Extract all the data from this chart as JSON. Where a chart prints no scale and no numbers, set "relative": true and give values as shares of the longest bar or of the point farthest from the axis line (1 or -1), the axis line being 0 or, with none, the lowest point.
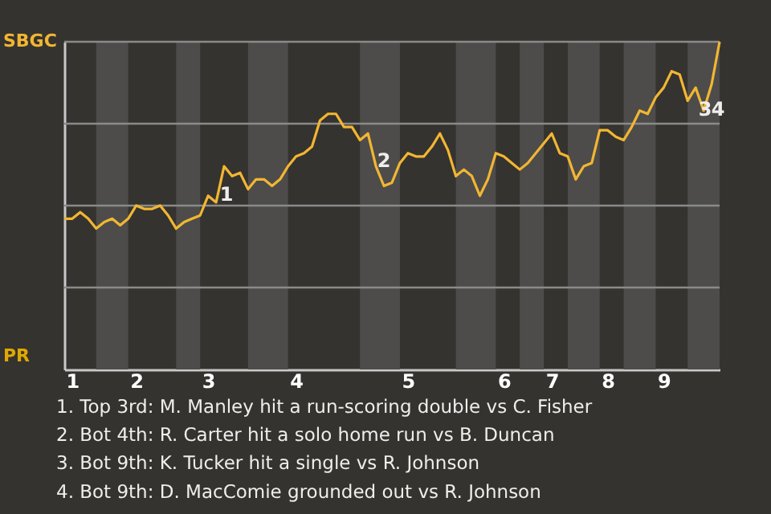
{
  "chart_data": {
    "type": "line",
    "relative": true,
    "categories": [
      null,
      "1",
      null,
      null,
      null,
      null,
      null,
      null,
      null,
      "2",
      null,
      null,
      null,
      null,
      null,
      null,
      null,
      null,
      "3",
      null,
      null,
      null,
      null,
      null,
      null,
      null,
      null,
      null,
      null,
      "4",
      null,
      null,
      null,
      null,
      null,
      null,
      null,
      null,
      null,
      null,
      null,
      null,
      null,
      "5",
      null,
      null,
      null,
      null,
      null,
      null,
      null,
      null,
      null,
      null,
      null,
      "6",
      null,
      null,
      null,
      null,
      null,
      "7",
      null,
      null,
      null,
      null,
      null,
      null,
      "8",
      null,
      null,
      null,
      null,
      null,
      null,
      "9",
      null,
      null,
      null,
      null,
      null,
      null,
      null
    ],
    "series": [
      {
        "color": "#f2b632",
        "values": [
          0.46,
          0.46,
          0.48,
          0.46,
          0.43,
          0.45,
          0.46,
          0.44,
          0.46,
          0.5,
          0.49,
          0.49,
          0.5,
          0.47,
          0.43,
          0.45,
          0.46,
          0.47,
          0.53,
          0.51,
          0.62,
          0.59,
          0.6,
          0.55,
          0.58,
          0.58,
          0.56,
          0.58,
          0.62,
          0.65,
          0.66,
          0.68,
          0.76,
          0.78,
          0.78,
          0.74,
          0.74,
          0.7,
          0.72,
          0.62,
          0.56,
          0.57,
          0.63,
          0.66,
          0.65,
          0.65,
          0.68,
          0.72,
          0.67,
          0.59,
          0.61,
          0.59,
          0.53,
          0.58,
          0.66,
          0.65,
          0.63,
          0.61,
          0.63,
          0.66,
          0.69,
          0.72,
          0.66,
          0.65,
          0.58,
          0.62,
          0.63,
          0.73,
          0.73,
          0.71,
          0.7,
          0.74,
          0.79,
          0.78,
          0.83,
          0.86,
          0.91,
          0.9,
          0.82,
          0.86,
          0.79,
          0.87,
          1.0
        ]
      }
    ],
    "grid": false,
    "ref_lines": [
      {
        "axis": "y",
        "value": 0.25,
        "color": "#8a8a8a"
      },
      {
        "axis": "y",
        "value": 0.5,
        "color": "#8a8a8a"
      },
      {
        "axis": "y",
        "value": 0.75,
        "color": "#8a8a8a"
      },
      {
        "axis": "y",
        "value": 1,
        "color": "#8a8a8a"
      }
    ],
    "annotations": [
      "SBGC",
      "PR",
      "1",
      "2",
      "3",
      "4",
      "1. Top 3rd: M. Manley hit a run-scoring double vs C. Fisher",
      "2. Bot 4th: R. Carter hit a solo home run vs B. Duncan",
      "3. Bot 9th: K. Tucker hit a single vs R. Johnson",
      "4. Bot 9th: D. MacComie grounded out vs R. Johnson"
    ]
  }
}
